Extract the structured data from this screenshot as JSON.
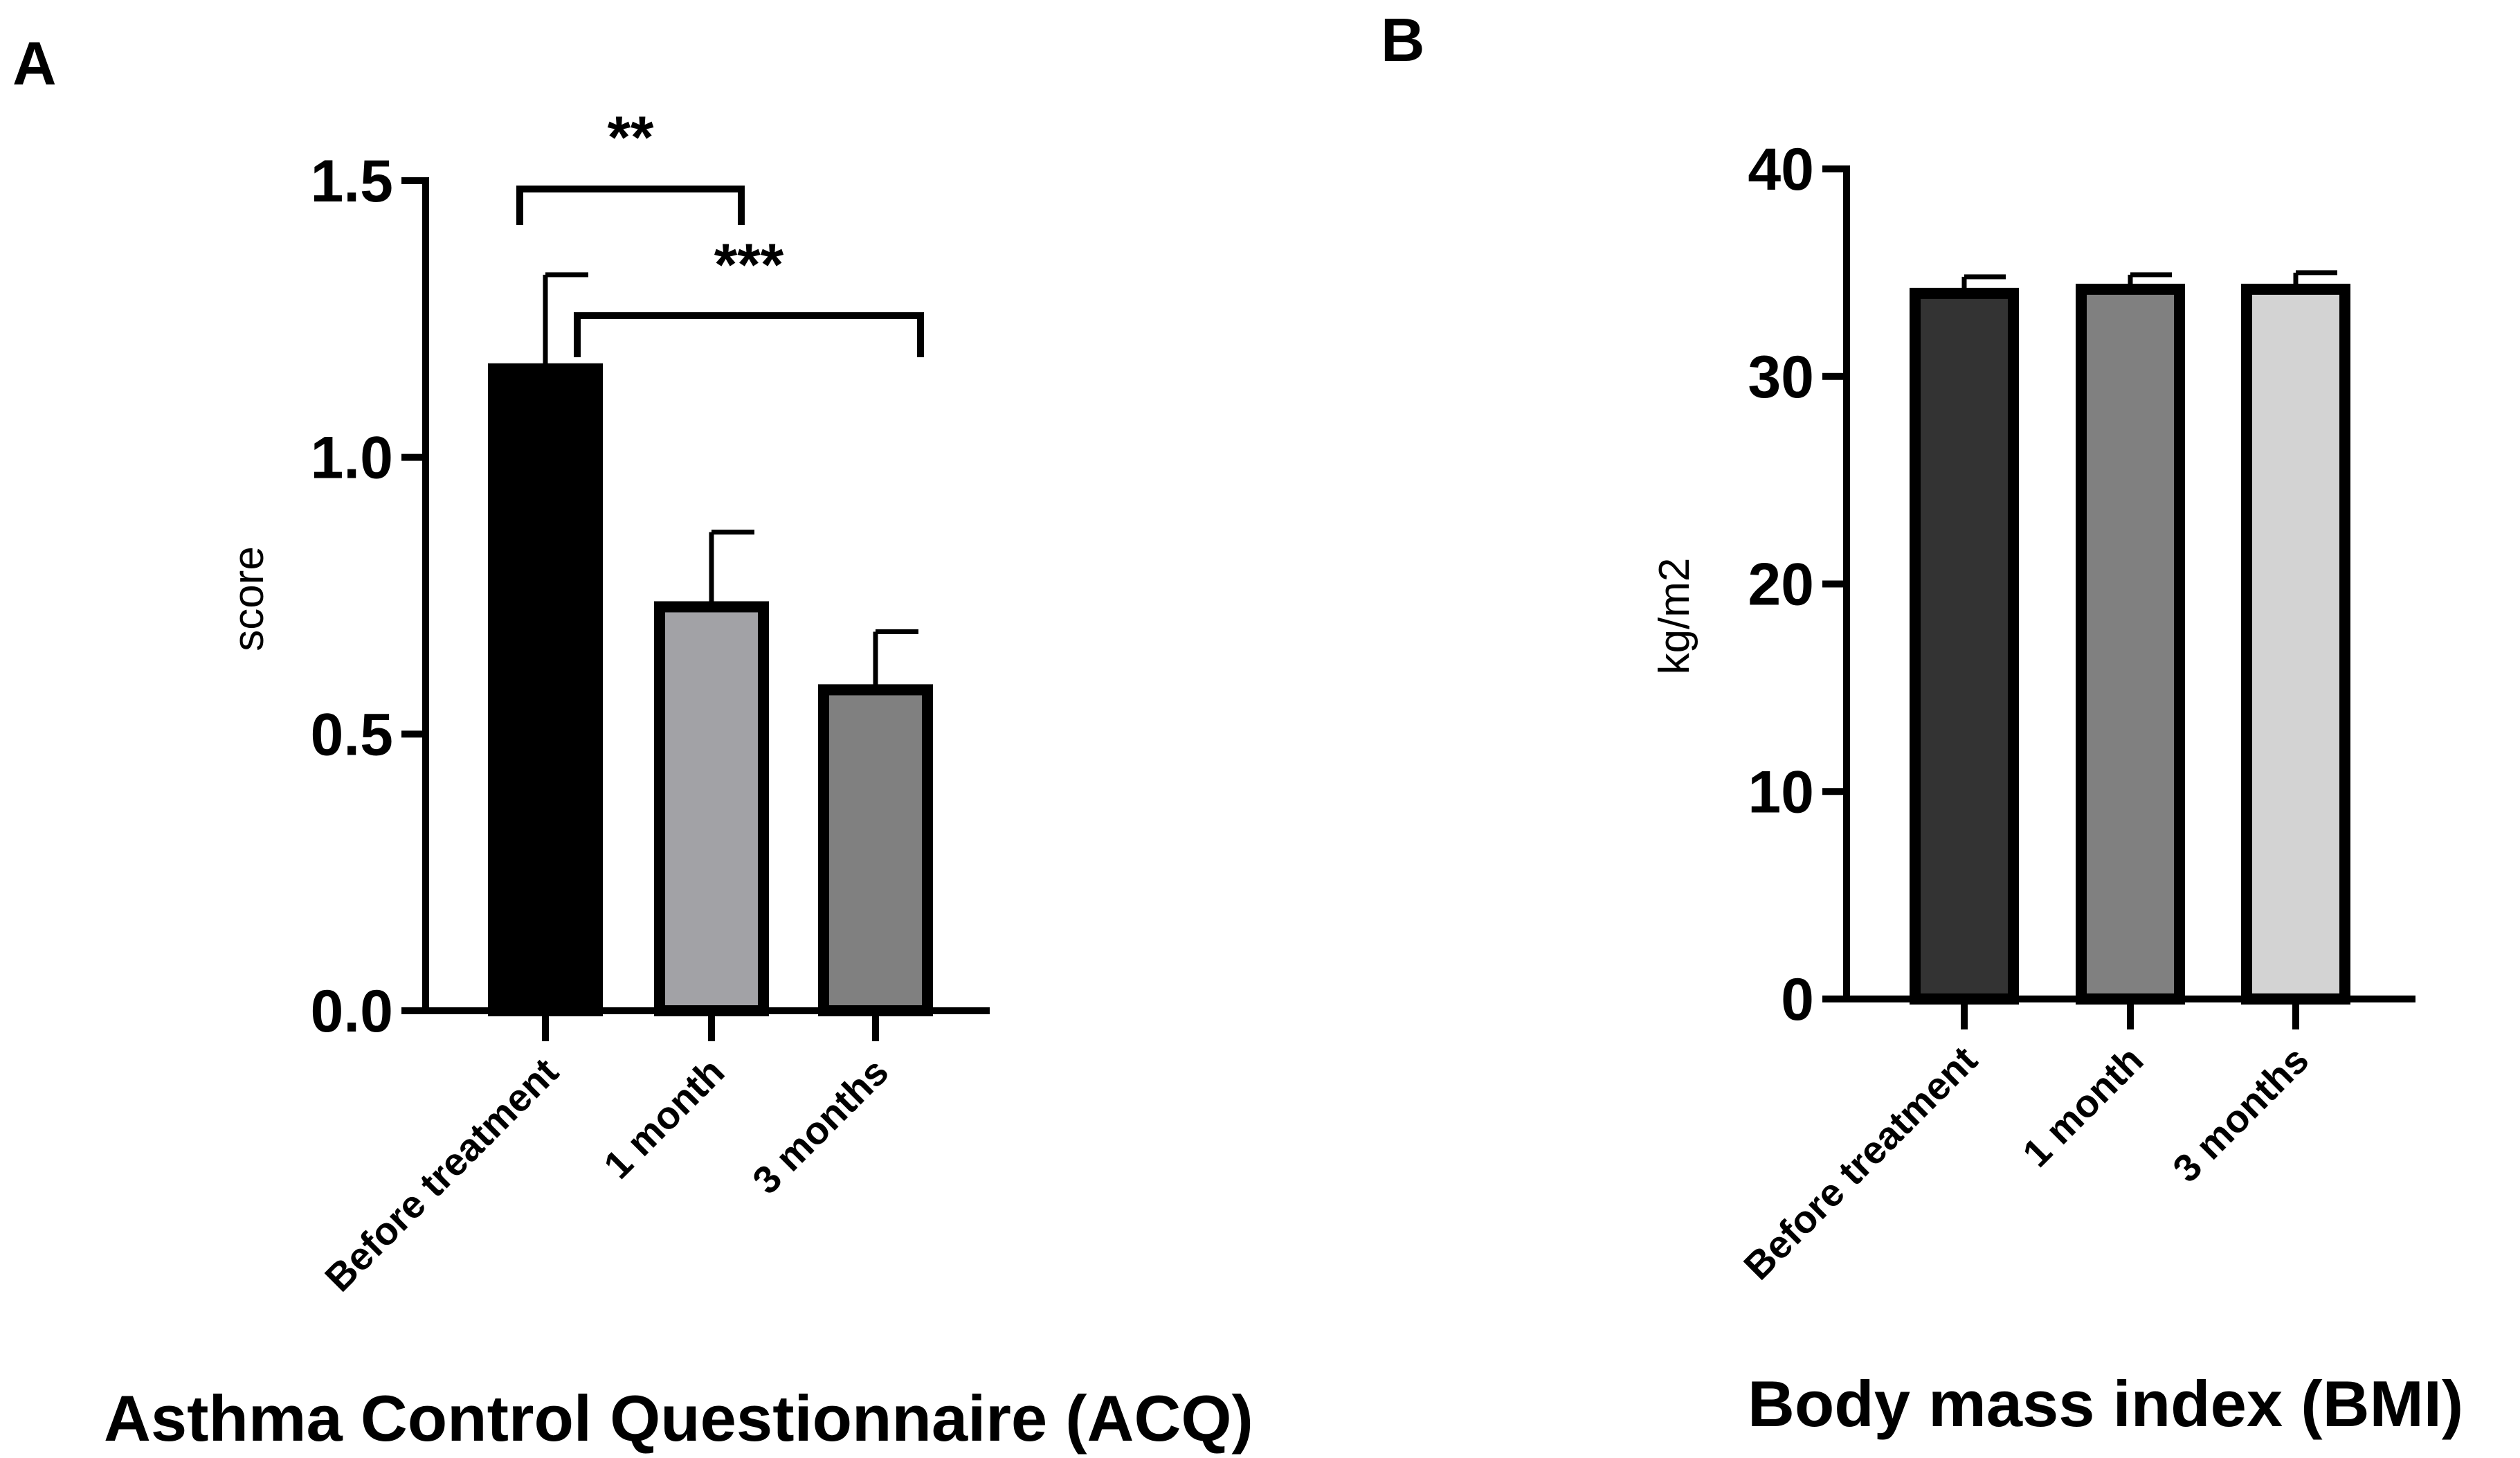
{
  "chart_data": [
    {
      "panel": "A",
      "type": "bar",
      "title": "Asthma Control Questionnaire (ACQ)",
      "xlabel": "",
      "ylabel": "score",
      "ylim": [
        0,
        1.5
      ],
      "yticks": [
        0.0,
        0.5,
        1.0,
        1.5
      ],
      "ytick_labels": [
        "0.0",
        "0.5",
        "1.0",
        "1.5"
      ],
      "categories": [
        "Before treatment",
        "1 month",
        "3 months"
      ],
      "values": [
        1.16,
        0.73,
        0.58
      ],
      "errors": [
        0.17,
        0.135,
        0.105
      ],
      "colors": [
        "#000000",
        "#a2a2a6",
        "#808080"
      ],
      "significance": [
        {
          "from": 0,
          "to": 1,
          "label": "**"
        },
        {
          "from": 0,
          "to": 2,
          "label": "***"
        }
      ]
    },
    {
      "panel": "B",
      "type": "bar",
      "title": "Body mass index (BMI)",
      "xlabel": "",
      "ylabel": "kg/m2",
      "ylim": [
        0,
        40
      ],
      "yticks": [
        0,
        10,
        20,
        30,
        40
      ],
      "ytick_labels": [
        "0",
        "10",
        "20",
        "30",
        "40"
      ],
      "categories": [
        "Before treatment",
        "1 month",
        "3 months"
      ],
      "values": [
        34.0,
        34.2,
        34.2
      ],
      "errors": [
        0.8,
        0.7,
        0.8
      ],
      "colors": [
        "#333333",
        "#808080",
        "#d3d3d3"
      ],
      "significance": []
    }
  ]
}
